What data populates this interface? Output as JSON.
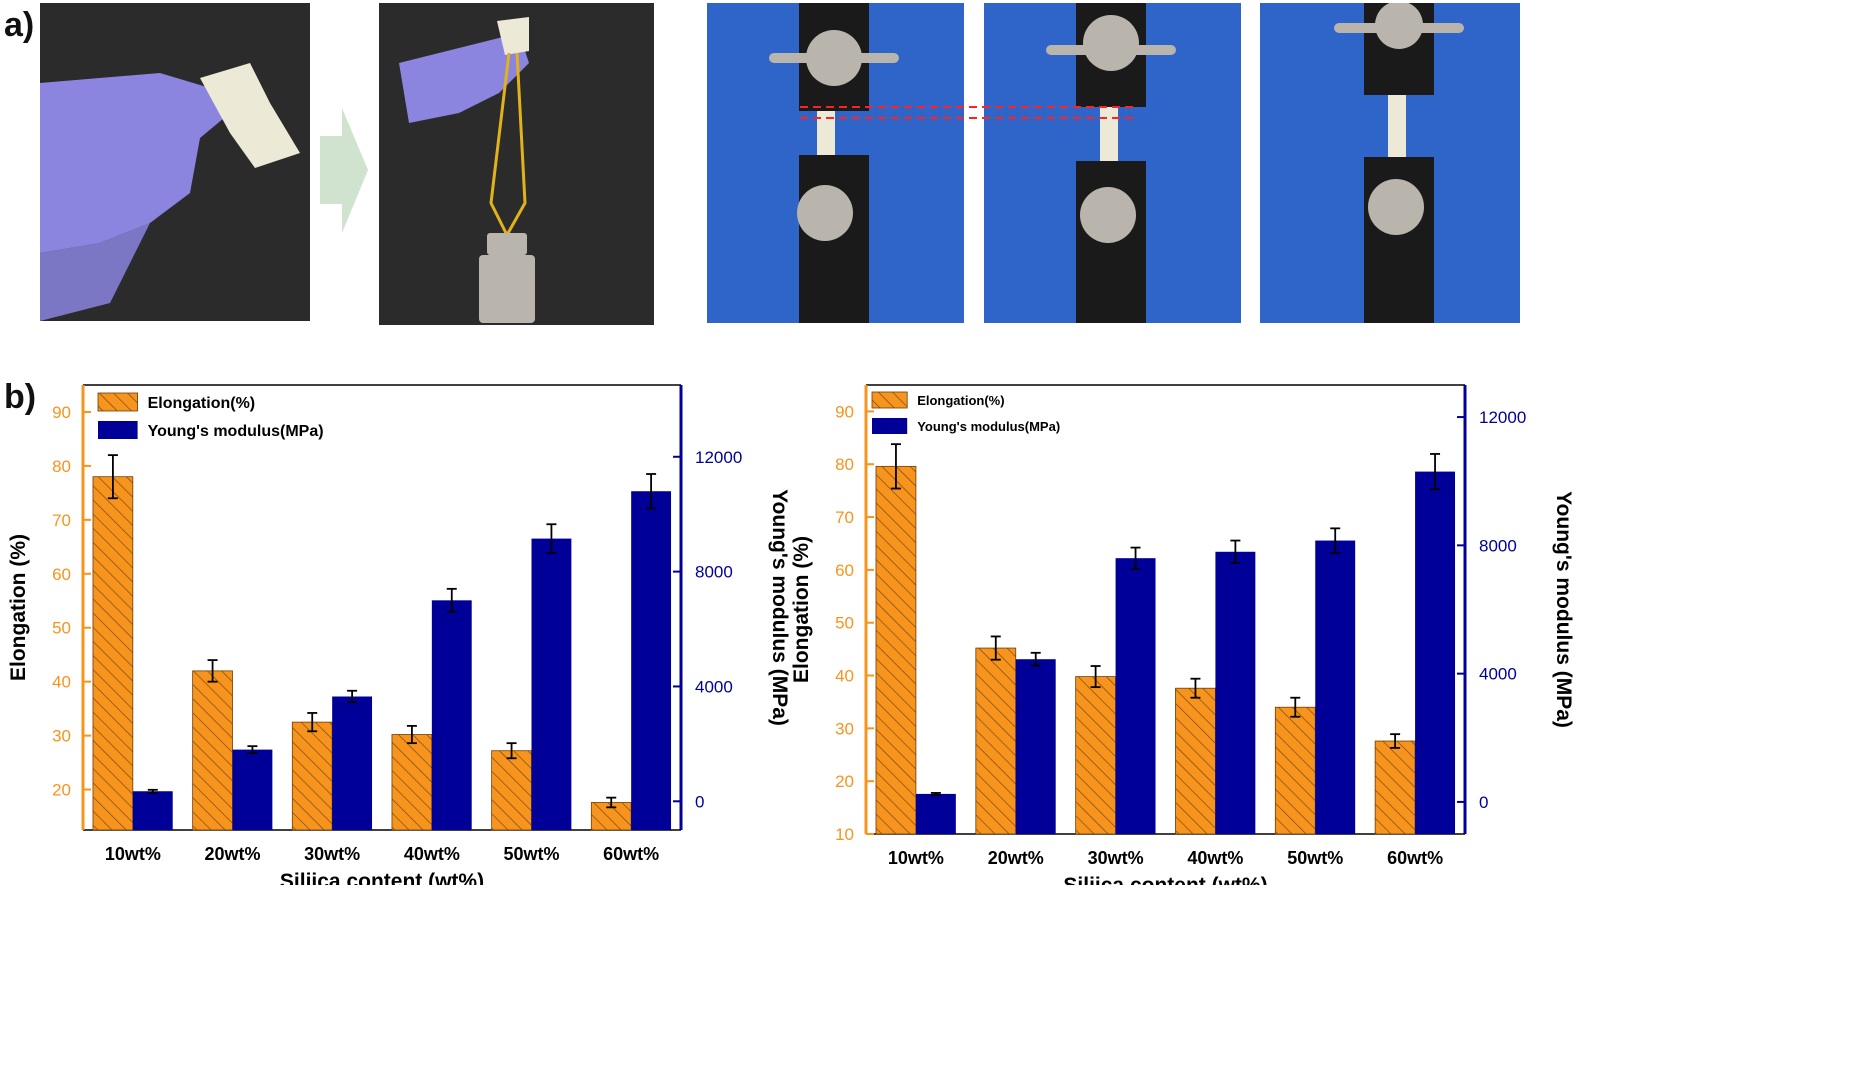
{
  "panel_labels": {
    "a": "a)",
    "b": "b)"
  },
  "colors": {
    "elongation": "#f7941d",
    "modulus": "#000099",
    "left_axis": "#f7941d",
    "right_axis": "#000099",
    "glove": "#8b85e0",
    "film": "#ece9d6",
    "fabric_dark": "#2b2b2b",
    "blue_backdrop": "#2f64c8",
    "fixture": "#1a1a1a",
    "weight": "#b9b4ac",
    "string": "#e2b21c",
    "arrow": "#cfe3cf",
    "guide_line": "#ff2222"
  },
  "chart_data": [
    {
      "type": "bar",
      "categories": [
        "10wt%",
        "20wt%",
        "30wt%",
        "40wt%",
        "50wt%",
        "60wt%"
      ],
      "xlabel": "Siliica content (wt%)",
      "series": [
        {
          "name": "Elongation(%)",
          "axis": "left",
          "values": [
            78,
            42,
            32.5,
            30.2,
            27.2,
            17.6
          ],
          "errors": [
            4,
            2,
            1.7,
            1.6,
            1.4,
            0.9
          ]
        },
        {
          "name": "Young's modulus(MPa)",
          "axis": "right",
          "values": [
            350,
            1800,
            3650,
            7000,
            9150,
            10800
          ],
          "errors": [
            50,
            120,
            200,
            400,
            500,
            600
          ]
        }
      ],
      "y_left": {
        "label": "Elongation (%)",
        "range": [
          12.5,
          95
        ],
        "ticks": [
          20,
          30,
          40,
          50,
          60,
          70,
          80,
          90
        ]
      },
      "y_right": {
        "label": "Young's modulus (MPa)",
        "range": [
          -1000,
          14500
        ],
        "ticks": [
          0,
          4000,
          8000,
          12000
        ]
      },
      "legend": "top-left",
      "grid": false
    },
    {
      "type": "bar",
      "categories": [
        "10wt%",
        "20wt%",
        "30wt%",
        "40wt%",
        "50wt%",
        "60wt%"
      ],
      "xlabel": "Siliica content (wt%)",
      "series": [
        {
          "name": "Elongation(%)",
          "axis": "left",
          "values": [
            79.6,
            45.2,
            39.8,
            37.6,
            34,
            27.6
          ],
          "errors": [
            4.2,
            2.2,
            2,
            1.8,
            1.8,
            1.3
          ]
        },
        {
          "name": "Young's modulus(MPa)",
          "axis": "right",
          "values": [
            250,
            4450,
            7600,
            7800,
            8150,
            10300
          ],
          "errors": [
            30,
            200,
            330,
            350,
            380,
            550
          ]
        }
      ],
      "y_left": {
        "label": "Elongation (%)",
        "range": [
          10,
          95
        ],
        "ticks": [
          10,
          20,
          30,
          40,
          50,
          60,
          70,
          80,
          90
        ]
      },
      "y_right": {
        "label": "Young's modulus (MPa)",
        "range": [
          -1000,
          13000
        ],
        "ticks": [
          0,
          4000,
          8000,
          12000
        ]
      },
      "legend": "top-left",
      "grid": false
    }
  ]
}
